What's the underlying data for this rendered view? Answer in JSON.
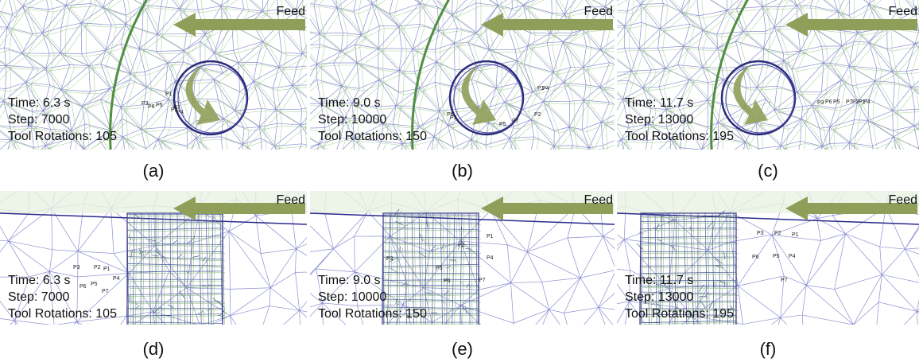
{
  "panels": [
    {
      "caption": "(a)",
      "feed": "Feed",
      "time": "Time: 6.3 s",
      "step": "Step: 7000",
      "rotations": "Tool Rotations: 105",
      "points": [
        "P1",
        "P2",
        "P3",
        "P4",
        "P5",
        "P6",
        "P7"
      ]
    },
    {
      "caption": "(b)",
      "feed": "Feed",
      "time": "Time: 9.0 s",
      "step": "Step: 10000",
      "rotations": "Tool Rotations: 150",
      "points": [
        "P1",
        "P2",
        "P3",
        "P4",
        "P5",
        "P6",
        "P7"
      ]
    },
    {
      "caption": "(c)",
      "feed": "Feed",
      "time": "Time: 11.7 s",
      "step": "Step: 13000",
      "rotations": "Tool Rotations: 195",
      "points": [
        "P1",
        "P2",
        "P3",
        "P4",
        "P5",
        "P6",
        "P7"
      ]
    },
    {
      "caption": "(d)",
      "feed": "Feed",
      "time": "Time: 6.3 s",
      "step": "Step: 7000",
      "rotations": "Tool Rotations: 105",
      "points": [
        "P1",
        "P2",
        "P3",
        "P4",
        "P5",
        "P6",
        "P7"
      ]
    },
    {
      "caption": "(e)",
      "feed": "Feed",
      "time": "Time: 9.0 s",
      "step": "Step: 10000",
      "rotations": "Tool Rotations: 150",
      "points": [
        "P1",
        "P2",
        "P3",
        "P4",
        "P5",
        "P6",
        "P7"
      ]
    },
    {
      "caption": "(f)",
      "feed": "Feed",
      "time": "Time: 11.7 s",
      "step": "Step: 13000",
      "rotations": "Tool Rotations: 195",
      "points": [
        "P1",
        "P2",
        "P3",
        "P4",
        "P5",
        "P6",
        "P7"
      ]
    }
  ]
}
